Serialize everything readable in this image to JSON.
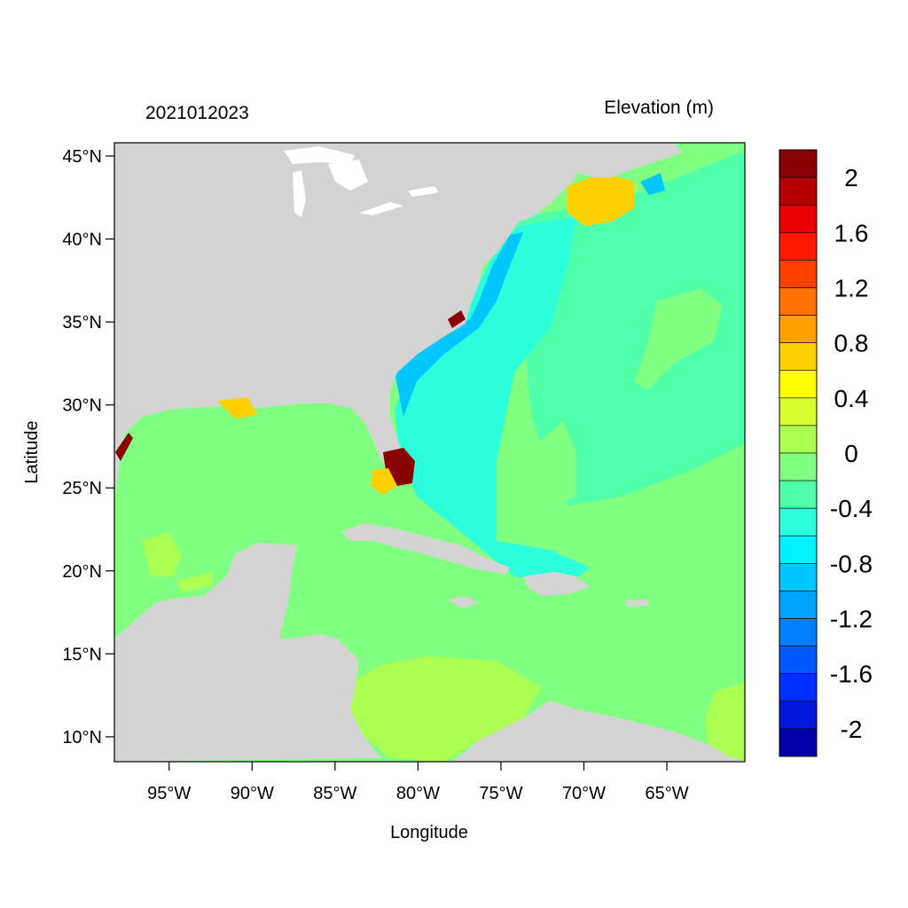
{
  "header": {
    "timestamp": "2021012023",
    "variable": "Elevation (m)"
  },
  "axes": {
    "xlabel": "Longitude",
    "ylabel": "Latitude",
    "x_range": [
      -98.3,
      -60.3
    ],
    "y_range": [
      8.5,
      45.8
    ],
    "x_ticks": [
      {
        "value": -95,
        "label": "95°W"
      },
      {
        "value": -90,
        "label": "90°W"
      },
      {
        "value": -85,
        "label": "85°W"
      },
      {
        "value": -80,
        "label": "80°W"
      },
      {
        "value": -75,
        "label": "75°W"
      },
      {
        "value": -70,
        "label": "70°W"
      },
      {
        "value": -65,
        "label": "65°W"
      }
    ],
    "y_ticks": [
      {
        "value": 45,
        "label": "45°N"
      },
      {
        "value": 40,
        "label": "40°N"
      },
      {
        "value": 35,
        "label": "35°N"
      },
      {
        "value": 30,
        "label": "30°N"
      },
      {
        "value": 25,
        "label": "25°N"
      },
      {
        "value": 20,
        "label": "20°N"
      },
      {
        "value": 15,
        "label": "15°N"
      },
      {
        "value": 10,
        "label": "10°N"
      }
    ]
  },
  "colorbar": {
    "colors": [
      "#0000a8",
      "#0018dc",
      "#0030ff",
      "#0058ff",
      "#0080ff",
      "#00a4ff",
      "#00c8ff",
      "#00f0ff",
      "#2cffdc",
      "#50ffaa",
      "#80ff80",
      "#aaff50",
      "#d8ff30",
      "#ffff00",
      "#ffd000",
      "#ffa000",
      "#ff7000",
      "#ff4000",
      "#ff1800",
      "#e80000",
      "#b40000",
      "#880000"
    ],
    "labels": [
      "2",
      "1.6",
      "1.2",
      "0.8",
      "0.4",
      "0",
      "-0.4",
      "-0.8",
      "-1.2",
      "-1.6",
      "-2"
    ],
    "label_values": [
      2,
      1.6,
      1.2,
      0.8,
      0.4,
      0,
      -0.4,
      -0.8,
      -1.2,
      -1.6,
      -2
    ],
    "range": [
      -2.2,
      2.2
    ]
  },
  "colors": {
    "land": "#d3d3d3",
    "ocean_neutral": "#80ff80",
    "ocean_slight_low": "#50ffaa",
    "ocean_low": "#2cffdc",
    "ocean_lower": "#00c8ff",
    "ocean_slight_high": "#aaff50",
    "ocean_high": "#d8ff30",
    "surge_peak": "#880000",
    "surge_high": "#ffd000"
  }
}
